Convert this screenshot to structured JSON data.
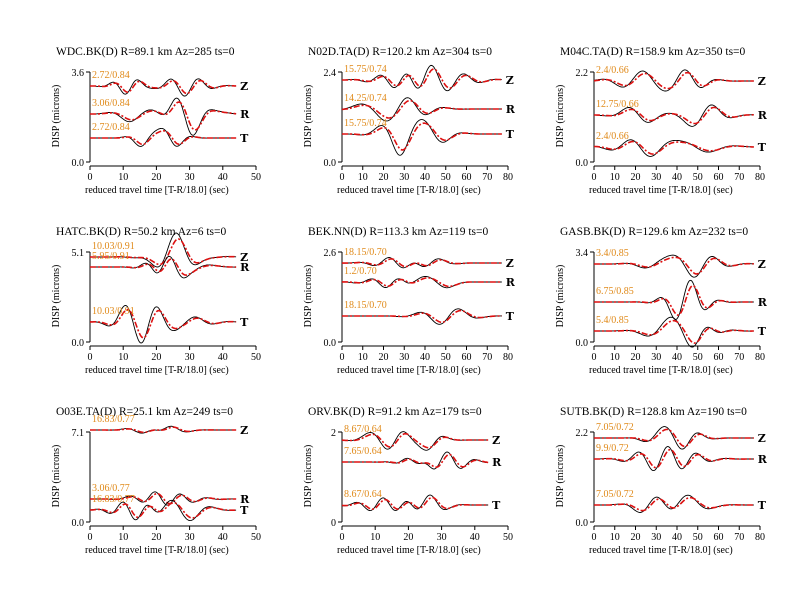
{
  "chart_data": [
    {
      "type": "line",
      "title": "WDC.BK(D) R=89.1 km Az=285 ts=0",
      "xlabel": "reduced travel time [T-R/18.0] (sec)",
      "ylabel": "DISP (microns)",
      "xlim": [
        0,
        50
      ],
      "xticks": [
        0,
        10,
        20,
        30,
        40,
        50
      ],
      "ylim_labels": [
        "0.0",
        "3.6"
      ],
      "traces": [
        {
          "comp": "Z",
          "annotation": "2.72/0.84"
        },
        {
          "comp": "R",
          "annotation": "3.06/0.84"
        },
        {
          "comp": "T",
          "annotation": "2.72/0.84"
        }
      ]
    },
    {
      "type": "line",
      "title": "N02D.TA(D) R=120.2 km Az=304 ts=0",
      "xlabel": "reduced travel time [T-R/18.0] (sec)",
      "ylabel": "DISP (microns)",
      "xlim": [
        0,
        80
      ],
      "xticks": [
        0,
        10,
        20,
        30,
        40,
        50,
        60,
        70,
        80
      ],
      "ylim_labels": [
        "0.0",
        "2.4"
      ],
      "traces": [
        {
          "comp": "Z",
          "annotation": "15.75/0.74"
        },
        {
          "comp": "R",
          "annotation": "14.25/0.74"
        },
        {
          "comp": "T",
          "annotation": "15.75/0.74"
        }
      ]
    },
    {
      "type": "line",
      "title": "M04C.TA(D) R=158.9 km Az=350 ts=0",
      "xlabel": "reduced travel time [T-R/18.0] (sec)",
      "ylabel": "DISP (microns)",
      "xlim": [
        0,
        80
      ],
      "xticks": [
        0,
        10,
        20,
        30,
        40,
        50,
        60,
        70,
        80
      ],
      "ylim_labels": [
        "0.0",
        "2.2"
      ],
      "traces": [
        {
          "comp": "Z",
          "annotation": "2.4/0.66"
        },
        {
          "comp": "R",
          "annotation": "12.75/0.66"
        },
        {
          "comp": "T",
          "annotation": "2.4/0.66"
        }
      ]
    },
    {
      "type": "line",
      "title": "HATC.BK(D) R=50.2 km Az=6 ts=0",
      "xlabel": "reduced travel time [T-R/18.0] (sec)",
      "ylabel": "DISP (microns)",
      "xlim": [
        0,
        50
      ],
      "xticks": [
        0,
        10,
        20,
        30,
        40,
        50
      ],
      "ylim_labels": [
        "0.0",
        "5.1"
      ],
      "traces": [
        {
          "comp": "Z",
          "annotation": "10.03/0.91"
        },
        {
          "comp": "R",
          "annotation": "5.95/0.91"
        },
        {
          "comp": "T",
          "annotation": "10.03/0.91"
        }
      ]
    },
    {
      "type": "line",
      "title": "BEK.NN(D) R=113.3 km Az=119 ts=0",
      "xlabel": "reduced travel time [T-R/18.0] (sec)",
      "ylabel": "DISP (microns)",
      "xlim": [
        0,
        80
      ],
      "xticks": [
        0,
        10,
        20,
        30,
        40,
        50,
        60,
        70,
        80
      ],
      "ylim_labels": [
        "0.0",
        "2.6"
      ],
      "traces": [
        {
          "comp": "Z",
          "annotation": "18.15/0.70"
        },
        {
          "comp": "R",
          "annotation": "1.2/0.70"
        },
        {
          "comp": "T",
          "annotation": "18.15/0.70"
        }
      ]
    },
    {
      "type": "line",
      "title": "GASB.BK(D) R=129.6 km Az=232 ts=0",
      "xlabel": "reduced travel time [T-R/18.0] (sec)",
      "ylabel": "DISP (microns)",
      "xlim": [
        0,
        80
      ],
      "xticks": [
        0,
        10,
        20,
        30,
        40,
        50,
        60,
        70,
        80
      ],
      "ylim_labels": [
        "0.0",
        "3.4"
      ],
      "traces": [
        {
          "comp": "Z",
          "annotation": "3.4/0.85"
        },
        {
          "comp": "R",
          "annotation": "6.75/0.85"
        },
        {
          "comp": "T",
          "annotation": "5.4/0.85"
        }
      ]
    },
    {
      "type": "line",
      "title": "O03E.TA(D) R=25.1 km Az=249 ts=0",
      "xlabel": "reduced travel time [T-R/18.0] (sec)",
      "ylabel": "DISP (microns)",
      "xlim": [
        0,
        50
      ],
      "xticks": [
        0,
        10,
        20,
        30,
        40,
        50
      ],
      "ylim_labels": [
        "0.0",
        "7.1"
      ],
      "traces": [
        {
          "comp": "Z",
          "annotation": "16.83/0.77"
        },
        {
          "comp": "R",
          "annotation": "3.06/0.77"
        },
        {
          "comp": "T",
          "annotation": "16.83/0.77"
        }
      ]
    },
    {
      "type": "line",
      "title": "ORV.BK(D) R=91.2 km Az=179 ts=0",
      "xlabel": "reduced travel time [T-R/18.0] (sec)",
      "ylabel": "DISP (microns)",
      "xlim": [
        0,
        50
      ],
      "xticks": [
        0,
        10,
        20,
        30,
        40,
        50
      ],
      "ylim_labels": [
        "0",
        "2"
      ],
      "traces": [
        {
          "comp": "Z",
          "annotation": "8.67/0.64"
        },
        {
          "comp": "R",
          "annotation": "7.65/0.64"
        },
        {
          "comp": "T",
          "annotation": "8.67/0.64"
        }
      ]
    },
    {
      "type": "line",
      "title": "SUTB.BK(D) R=128.8 km Az=190 ts=0",
      "xlabel": "reduced travel time [T-R/18.0] (sec)",
      "ylabel": "DISP (microns)",
      "xlim": [
        0,
        80
      ],
      "xticks": [
        0,
        10,
        20,
        30,
        40,
        50,
        60,
        70,
        80
      ],
      "ylim_labels": [
        "0.0",
        "2.2"
      ],
      "traces": [
        {
          "comp": "Z",
          "annotation": "7.05/0.72"
        },
        {
          "comp": "R",
          "annotation": "9.9/0.72"
        },
        {
          "comp": "T",
          "annotation": "7.05/0.72"
        }
      ]
    }
  ],
  "colors": {
    "observed": "#000000",
    "synthetic": "#dd1111",
    "annotation": "#e08a1a"
  }
}
